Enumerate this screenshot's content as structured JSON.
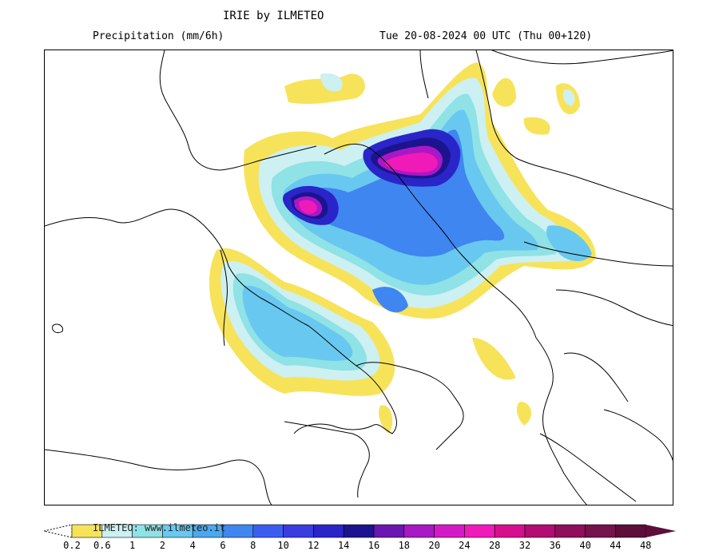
{
  "header": {
    "title": "IRIE by ILMETEO",
    "subtitle_left": "Precipitation (mm/6h)",
    "subtitle_right": "Tue 20-08-2024 00 UTC (Thu 00+120)"
  },
  "legend": {
    "watermark": "ILMETEO: www.ilmeteo.it",
    "ticks": [
      "0.2",
      "0.6",
      "1",
      "2",
      "4",
      "6",
      "8",
      "10",
      "12",
      "14",
      "16",
      "18",
      "20",
      "24",
      "28",
      "32",
      "36",
      "40",
      "44",
      "48"
    ],
    "colors": [
      "#ffffff",
      "#f7e35a",
      "#cdf0f2",
      "#8fe2e6",
      "#69c8ef",
      "#4aa8ef",
      "#3f86f0",
      "#3a5ff0",
      "#3a3ce0",
      "#2a25c8",
      "#1c148f",
      "#6a16b0",
      "#a918c5",
      "#d41ac7",
      "#f01ab8",
      "#d60f8f",
      "#b30c72",
      "#8f0f5c",
      "#74134c",
      "#5d0e3a"
    ]
  },
  "map": {
    "colors": {
      "land_outline": "#000000",
      "background": "#ffffff",
      "low": "#f7e35a",
      "light": "#cdf0f2",
      "aqua": "#8fe2e6",
      "sky": "#69c8ef",
      "blue": "#3f86f0",
      "deep": "#2a25c8",
      "navy": "#1c148f",
      "purple": "#a918c5",
      "magenta": "#f01ab8"
    }
  }
}
